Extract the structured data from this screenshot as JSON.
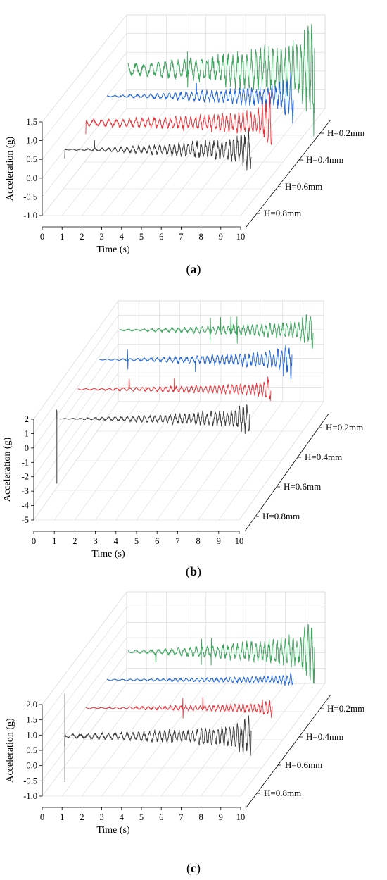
{
  "chart_data": [
    {
      "type": "line",
      "panel": "a",
      "caption": "(a)",
      "xlabel": "Time (s)",
      "ylabel": "Acceleration (g)",
      "xlim": [
        0,
        10
      ],
      "ylim": [
        -1.0,
        1.5
      ],
      "x_ticks": [
        "0",
        "1",
        "2",
        "3",
        "4",
        "5",
        "6",
        "7",
        "8",
        "9",
        "10"
      ],
      "y_ticks": [
        "-1.0",
        "-0.5",
        "0.0",
        "0.5",
        "1.0",
        "1.5"
      ],
      "depth_labels": [
        "H=0.2mm",
        "H=0.4mm",
        "H=0.6mm",
        "H=0.8mm"
      ],
      "series": [
        {
          "name": "H=0.2mm",
          "color": "#3aa65c",
          "t_start": 0.6,
          "t_end": 10.0,
          "baseline": 0.4,
          "amp_start": 0.15,
          "amp_end": 0.7,
          "spikes": [
            3.6
          ],
          "end_burst": 0.9
        },
        {
          "name": "H=0.4mm",
          "color": "#1e63d6",
          "t_start": 0.6,
          "t_end": 10.0,
          "baseline": 0.4,
          "amp_start": 0.02,
          "amp_end": 0.3,
          "spikes": [
            5.1
          ],
          "end_burst": 0.4
        },
        {
          "name": "H=0.6mm",
          "color": "#e8333a",
          "t_start": 0.6,
          "t_end": 10.0,
          "baseline": 0.4,
          "amp_start": 0.08,
          "amp_end": 0.3,
          "spikes": [
            0.6
          ],
          "end_burst": 0.55
        },
        {
          "name": "H=0.8mm",
          "color": "#3a3a3a",
          "t_start": 0.6,
          "t_end": 10.0,
          "baseline": 0.4,
          "amp_start": 0.01,
          "amp_end": 0.3,
          "spikes": [
            0.6,
            2.1
          ],
          "end_burst": 0.3
        }
      ]
    },
    {
      "type": "line",
      "panel": "b",
      "caption": "(b)",
      "xlabel": "Time (s)",
      "ylabel": "Acceleration (g)",
      "xlim": [
        0,
        10
      ],
      "ylim": [
        -5,
        2
      ],
      "x_ticks": [
        "0",
        "1",
        "2",
        "3",
        "4",
        "5",
        "6",
        "7",
        "8",
        "9",
        "10"
      ],
      "y_ticks": [
        "-5",
        "-4",
        "-3",
        "-2",
        "-1",
        "0",
        "1",
        "2"
      ],
      "depth_labels": [
        "H=0.2mm",
        "H=0.4mm",
        "H=0.6mm",
        "H=0.8mm"
      ],
      "series": [
        {
          "name": "H=0.2mm",
          "color": "#3aa65c",
          "t_start": 0.6,
          "t_end": 10.0,
          "baseline": 1.0,
          "amp_start": 0.05,
          "amp_end": 0.6,
          "spikes": [
            5.0,
            5.5,
            6.0,
            6.3
          ],
          "end_burst": 0.6
        },
        {
          "name": "H=0.4mm",
          "color": "#1e63d6",
          "t_start": 0.6,
          "t_end": 10.0,
          "baseline": 1.0,
          "amp_start": 0.03,
          "amp_end": 0.6,
          "spikes": [
            2.0,
            5.3
          ],
          "end_burst": 0.8
        },
        {
          "name": "H=0.6mm",
          "color": "#e8333a",
          "t_start": 0.6,
          "t_end": 10.0,
          "baseline": 1.0,
          "amp_start": 0.05,
          "amp_end": 0.4,
          "spikes": [
            3.1,
            5.3
          ],
          "end_burst": 0.5
        },
        {
          "name": "H=0.8mm",
          "color": "#3a3a3a",
          "t_start": 0.6,
          "t_end": 10.0,
          "baseline": 1.0,
          "amp_start": 0.02,
          "amp_end": 0.6,
          "spikes": [
            0.6
          ],
          "end_burst": 0.6,
          "big_spike": [
            1.5,
            -3.5
          ]
        }
      ]
    },
    {
      "type": "line",
      "panel": "c",
      "caption": "(c)",
      "xlabel": "Time (s)",
      "ylabel": "Acceleration (g)",
      "xlim": [
        0,
        10
      ],
      "ylim": [
        -1.0,
        2.0
      ],
      "x_ticks": [
        "0",
        "1",
        "2",
        "3",
        "4",
        "5",
        "6",
        "7",
        "8",
        "9",
        "10"
      ],
      "y_ticks": [
        "-1.0",
        "-0.5",
        "0.0",
        "0.5",
        "1.0",
        "1.5",
        "2.0"
      ],
      "depth_labels": [
        "H=0.2mm",
        "H=0.4mm",
        "H=0.6mm",
        "H=0.8mm"
      ],
      "series": [
        {
          "name": "H=0.2mm",
          "color": "#3aa65c",
          "t_start": 0.6,
          "t_end": 10.0,
          "baseline": 0.5,
          "amp_start": 0.04,
          "amp_end": 0.5,
          "spikes": [
            2.0,
            4.3,
            4.8
          ],
          "end_burst": 0.7
        },
        {
          "name": "H=0.4mm",
          "color": "#1e63d6",
          "t_start": 0.6,
          "t_end": 10.0,
          "baseline": 0.5,
          "amp_start": 0.02,
          "amp_end": 0.12,
          "spikes": [],
          "end_burst": 0.15
        },
        {
          "name": "H=0.6mm",
          "color": "#e8333a",
          "t_start": 0.6,
          "t_end": 10.0,
          "baseline": 0.5,
          "amp_start": 0.02,
          "amp_end": 0.15,
          "spikes": [
            5.5,
            6.5
          ],
          "end_burst": 0.2
        },
        {
          "name": "H=0.8mm",
          "color": "#3a3a3a",
          "t_start": 0.6,
          "t_end": 10.0,
          "baseline": 0.5,
          "amp_start": 0.06,
          "amp_end": 0.35,
          "spikes": [
            0.6
          ],
          "end_burst": 0.4,
          "big_spike": [
            1.9,
            -1.0
          ]
        }
      ]
    }
  ]
}
